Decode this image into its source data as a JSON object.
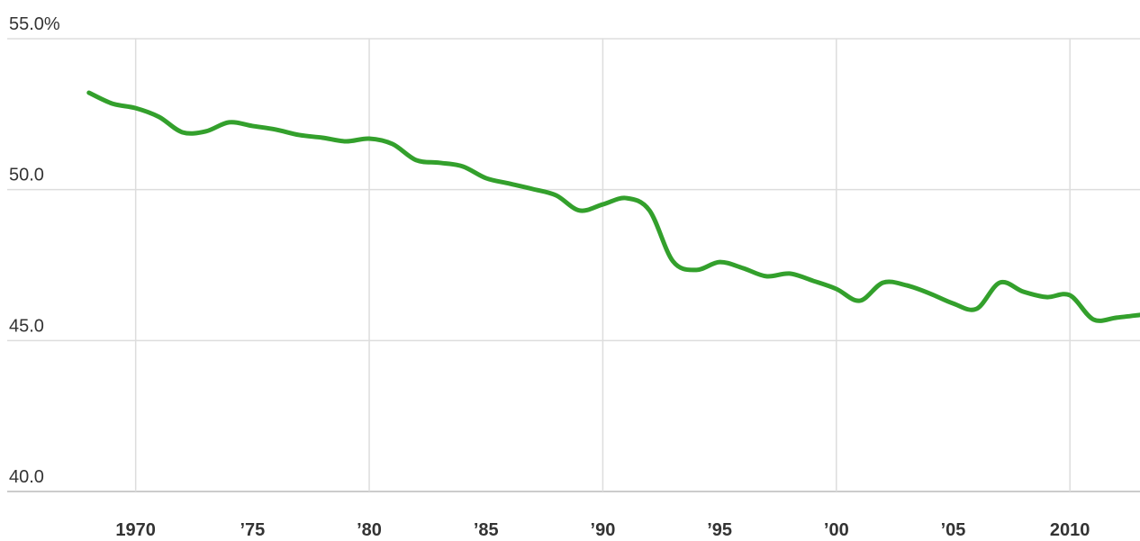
{
  "chart_data": {
    "type": "line",
    "x": [
      1968,
      1969,
      1970,
      1971,
      1972,
      1973,
      1974,
      1975,
      1976,
      1977,
      1978,
      1979,
      1980,
      1981,
      1982,
      1983,
      1984,
      1985,
      1986,
      1987,
      1988,
      1989,
      1990,
      1991,
      1992,
      1993,
      1994,
      1995,
      1996,
      1997,
      1998,
      1999,
      2000,
      2001,
      2002,
      2003,
      2004,
      2005,
      2006,
      2007,
      2008,
      2009,
      2010,
      2011,
      2012,
      2013
    ],
    "series": [
      {
        "color": "#33a02c",
        "values": [
          53.21,
          52.85,
          52.7,
          52.41,
          51.9,
          51.93,
          52.23,
          52.11,
          51.99,
          51.81,
          51.72,
          51.6,
          51.69,
          51.51,
          50.98,
          50.89,
          50.77,
          50.38,
          50.2,
          50.02,
          49.81,
          49.31,
          49.51,
          49.72,
          49.31,
          47.63,
          47.34,
          47.6,
          47.4,
          47.13,
          47.22,
          46.98,
          46.71,
          46.32,
          46.92,
          46.83,
          46.56,
          46.23,
          46.05,
          46.92,
          46.62,
          46.44,
          46.5,
          45.7,
          45.76,
          45.85
        ]
      }
    ],
    "xlim": [
      1964.5,
      2013
    ],
    "xticks": [
      1970,
      {
        "value": 1975,
        "label": "’75"
      },
      {
        "value": 1980,
        "label": "’80"
      },
      {
        "value": 1985,
        "label": "’85"
      },
      {
        "value": 1990,
        "label": "’90"
      },
      {
        "value": 1995,
        "label": "’95"
      },
      {
        "value": 2000,
        "label": "’00"
      },
      {
        "value": 2005,
        "label": "’05"
      },
      2010
    ],
    "ylim": [
      40,
      55
    ],
    "yticks": [
      {
        "value": 55,
        "label": "55.0%"
      },
      {
        "value": 50,
        "label": "50.0"
      },
      {
        "value": 45,
        "label": "45.0"
      },
      {
        "value": 40,
        "label": "40.0"
      }
    ],
    "grid": true
  }
}
